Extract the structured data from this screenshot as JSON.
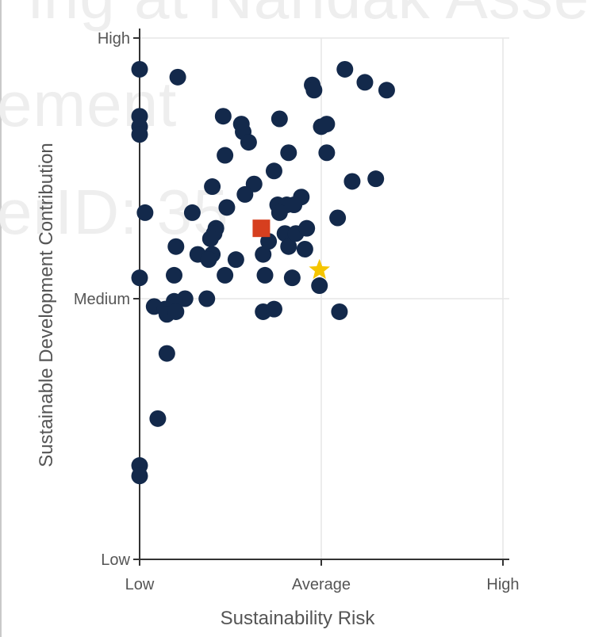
{
  "watermark": {
    "line1": "ing    at Nandak Asse",
    "line2": "ement",
    "line3": "erID: 35"
  },
  "chart_data": {
    "type": "scatter",
    "title": "",
    "xlabel": "Sustainability Risk",
    "ylabel": "Sustainable Development Contribution",
    "xlim": [
      0,
      2
    ],
    "ylim": [
      0,
      2
    ],
    "x_ticks": [
      {
        "value": 0,
        "label": "Low"
      },
      {
        "value": 1,
        "label": "Average"
      },
      {
        "value": 2,
        "label": "High"
      }
    ],
    "y_ticks": [
      {
        "value": 0,
        "label": "Low"
      },
      {
        "value": 1,
        "label": "Medium"
      },
      {
        "value": 2,
        "label": "High"
      }
    ],
    "grid": true,
    "colors": {
      "points": "#13294b",
      "highlight_square": "#d63f1f",
      "highlight_star": "#f5c500",
      "axis": "#333333",
      "grid": "#e6e6e6"
    },
    "series": [
      {
        "marker": "circle",
        "points": [
          [
            0.0,
            1.88
          ],
          [
            0.21,
            1.85
          ],
          [
            0.0,
            1.7
          ],
          [
            0.0,
            1.66
          ],
          [
            0.0,
            1.63
          ],
          [
            0.46,
            1.7
          ],
          [
            0.56,
            1.67
          ],
          [
            0.57,
            1.64
          ],
          [
            0.6,
            1.6
          ],
          [
            0.77,
            1.69
          ],
          [
            0.95,
            1.82
          ],
          [
            0.96,
            1.8
          ],
          [
            1.13,
            1.88
          ],
          [
            1.24,
            1.83
          ],
          [
            1.36,
            1.8
          ],
          [
            1.0,
            1.66
          ],
          [
            1.03,
            1.67
          ],
          [
            1.03,
            1.56
          ],
          [
            0.82,
            1.56
          ],
          [
            0.47,
            1.55
          ],
          [
            0.74,
            1.49
          ],
          [
            0.63,
            1.44
          ],
          [
            0.4,
            1.43
          ],
          [
            0.58,
            1.4
          ],
          [
            1.17,
            1.45
          ],
          [
            1.3,
            1.46
          ],
          [
            0.03,
            1.33
          ],
          [
            0.29,
            1.33
          ],
          [
            0.48,
            1.35
          ],
          [
            0.76,
            1.36
          ],
          [
            0.81,
            1.36
          ],
          [
            0.77,
            1.33
          ],
          [
            0.89,
            1.39
          ],
          [
            0.85,
            1.36
          ],
          [
            1.09,
            1.31
          ],
          [
            0.42,
            1.27
          ],
          [
            0.41,
            1.25
          ],
          [
            0.39,
            1.23
          ],
          [
            0.2,
            1.2
          ],
          [
            0.32,
            1.17
          ],
          [
            0.4,
            1.17
          ],
          [
            0.38,
            1.15
          ],
          [
            0.53,
            1.15
          ],
          [
            0.68,
            1.17
          ],
          [
            0.71,
            1.22
          ],
          [
            0.8,
            1.25
          ],
          [
            0.82,
            1.2
          ],
          [
            0.86,
            1.25
          ],
          [
            0.92,
            1.27
          ],
          [
            0.91,
            1.19
          ],
          [
            0.47,
            1.09
          ],
          [
            0.69,
            1.09
          ],
          [
            0.84,
            1.08
          ],
          [
            0.0,
            1.08
          ],
          [
            0.19,
            1.09
          ],
          [
            0.25,
            1.0
          ],
          [
            0.37,
            1.0
          ],
          [
            0.19,
            0.99
          ],
          [
            0.08,
            0.97
          ],
          [
            0.14,
            0.96
          ],
          [
            0.15,
            0.94
          ],
          [
            0.2,
            0.95
          ],
          [
            0.68,
            0.95
          ],
          [
            0.74,
            0.96
          ],
          [
            0.99,
            1.05
          ],
          [
            1.1,
            0.95
          ],
          [
            0.15,
            0.79
          ],
          [
            0.1,
            0.54
          ],
          [
            0.0,
            0.36
          ],
          [
            0.0,
            0.32
          ]
        ]
      },
      {
        "marker": "square",
        "points": [
          [
            0.67,
            1.27
          ]
        ]
      },
      {
        "marker": "star",
        "points": [
          [
            0.99,
            1.11
          ]
        ]
      }
    ]
  }
}
